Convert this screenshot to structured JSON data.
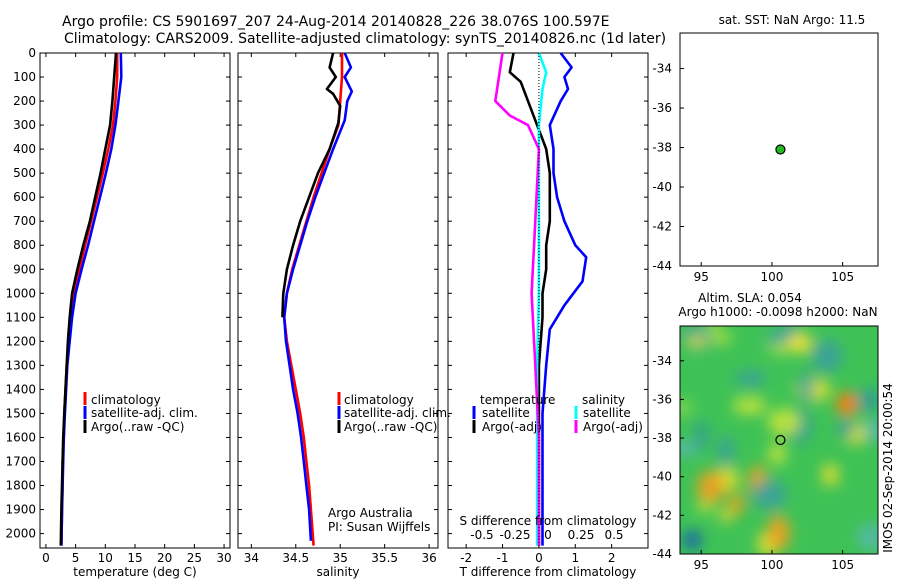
{
  "title_line1": "Argo profile: CS 5901697_207 24-Aug-2014 20140828_226 38.076S 100.597E",
  "title_line2": "Climatology: CARS2009. Satellite-adjusted climatology: synTS_20140826.nc (1d later)",
  "side_label": "IMOS 02-Sep-2014 20:00:54",
  "credit_line1": "Argo Australia",
  "credit_line2": "PI: Susan Wijffels",
  "colors": {
    "red": "#ff0000",
    "blue": "#0000ff",
    "black": "#000000",
    "cyan": "#00ffff",
    "magenta": "#ff00ff",
    "dot": "#22bb22"
  },
  "chart_data": [
    {
      "type": "line",
      "id": "temperature",
      "xlabel": "temperature (deg C)",
      "xlim": [
        -1,
        31
      ],
      "ylim": [
        2060,
        0
      ],
      "xticks": [
        0,
        5,
        10,
        15,
        20,
        25,
        30
      ],
      "yticks": [
        0,
        100,
        200,
        300,
        400,
        500,
        600,
        700,
        800,
        900,
        1000,
        1100,
        1200,
        1300,
        1400,
        1500,
        1600,
        1700,
        1800,
        1900,
        2000
      ],
      "legend": [
        "climatology",
        "satellite-adj. clim.",
        "Argo(..raw -QC)"
      ],
      "series": [
        {
          "name": "climatology",
          "color": "red",
          "points": [
            [
              12,
              0
            ],
            [
              12,
              100
            ],
            [
              11.7,
              200
            ],
            [
              11.3,
              300
            ],
            [
              10.5,
              400
            ],
            [
              9.6,
              500
            ],
            [
              8.6,
              600
            ],
            [
              7.6,
              700
            ],
            [
              6.6,
              800
            ],
            [
              5.6,
              900
            ],
            [
              4.7,
              1000
            ],
            [
              4.2,
              1100
            ],
            [
              3.8,
              1200
            ],
            [
              3.5,
              1300
            ],
            [
              3.3,
              1400
            ],
            [
              3.1,
              1500
            ],
            [
              3.0,
              1600
            ],
            [
              2.8,
              1700
            ],
            [
              2.8,
              1800
            ],
            [
              2.7,
              1900
            ],
            [
              2.6,
              2050
            ]
          ]
        },
        {
          "name": "satellite-adj. clim.",
          "color": "blue",
          "points": [
            [
              12.6,
              0
            ],
            [
              12.7,
              100
            ],
            [
              12.2,
              200
            ],
            [
              11.7,
              300
            ],
            [
              11.0,
              400
            ],
            [
              10.1,
              500
            ],
            [
              9.1,
              600
            ],
            [
              8.1,
              700
            ],
            [
              7.1,
              800
            ],
            [
              6.0,
              900
            ],
            [
              5.0,
              1000
            ],
            [
              4.4,
              1100
            ],
            [
              4.0,
              1200
            ],
            [
              3.6,
              1300
            ],
            [
              3.4,
              1400
            ],
            [
              3.2,
              1500
            ],
            [
              3.0,
              1600
            ],
            [
              2.9,
              1700
            ],
            [
              2.8,
              1800
            ],
            [
              2.7,
              1900
            ],
            [
              2.6,
              2050
            ]
          ]
        },
        {
          "name": "Argo(..raw -QC)",
          "color": "black",
          "points": [
            [
              11.8,
              0
            ],
            [
              11.5,
              100
            ],
            [
              11.2,
              200
            ],
            [
              10.8,
              300
            ],
            [
              10.0,
              400
            ],
            [
              9.2,
              500
            ],
            [
              8.3,
              600
            ],
            [
              7.4,
              700
            ],
            [
              6.3,
              800
            ],
            [
              5.3,
              900
            ],
            [
              4.4,
              1000
            ],
            [
              4.0,
              1100
            ],
            [
              3.7,
              1200
            ],
            [
              3.5,
              1300
            ],
            [
              3.3,
              1400
            ],
            [
              3.1,
              1500
            ],
            [
              2.9,
              1600
            ],
            [
              2.8,
              1700
            ],
            [
              2.7,
              1800
            ],
            [
              2.6,
              1900
            ],
            [
              2.5,
              2050
            ]
          ]
        }
      ]
    },
    {
      "type": "line",
      "id": "salinity",
      "xlabel": "salinity",
      "xlim": [
        33.85,
        36.1
      ],
      "ylim": [
        2060,
        0
      ],
      "xticks": [
        34,
        34.5,
        35,
        35.5,
        36
      ],
      "legend": [
        "climatology",
        "satellite-adj. clim.",
        "Argo(..raw -QC)"
      ],
      "series": [
        {
          "name": "climatology",
          "color": "red",
          "points": [
            [
              35.02,
              0
            ],
            [
              35.02,
              100
            ],
            [
              35.0,
              200
            ],
            [
              34.98,
              300
            ],
            [
              34.88,
              400
            ],
            [
              34.79,
              500
            ],
            [
              34.7,
              600
            ],
            [
              34.62,
              700
            ],
            [
              34.54,
              800
            ],
            [
              34.46,
              900
            ],
            [
              34.4,
              1000
            ],
            [
              34.37,
              1100
            ],
            [
              34.4,
              1200
            ],
            [
              34.45,
              1300
            ],
            [
              34.5,
              1400
            ],
            [
              34.55,
              1500
            ],
            [
              34.59,
              1600
            ],
            [
              34.62,
              1700
            ],
            [
              34.65,
              1800
            ],
            [
              34.67,
              1900
            ],
            [
              34.7,
              2050
            ]
          ]
        },
        {
          "name": "satellite-adj. clim.",
          "color": "blue",
          "points": [
            [
              35.05,
              0
            ],
            [
              35.12,
              60
            ],
            [
              35.05,
              100
            ],
            [
              35.13,
              160
            ],
            [
              35.08,
              200
            ],
            [
              35.05,
              280
            ],
            [
              34.92,
              400
            ],
            [
              34.82,
              500
            ],
            [
              34.72,
              600
            ],
            [
              34.63,
              700
            ],
            [
              34.55,
              800
            ],
            [
              34.47,
              900
            ],
            [
              34.4,
              1000
            ],
            [
              34.37,
              1100
            ],
            [
              34.39,
              1200
            ],
            [
              34.43,
              1300
            ],
            [
              34.47,
              1400
            ],
            [
              34.52,
              1500
            ],
            [
              34.56,
              1600
            ],
            [
              34.59,
              1700
            ],
            [
              34.62,
              1800
            ],
            [
              34.65,
              1900
            ],
            [
              34.67,
              2030
            ]
          ]
        },
        {
          "name": "Argo(..raw -QC)",
          "color": "black",
          "points": [
            [
              34.92,
              0
            ],
            [
              34.88,
              60
            ],
            [
              34.95,
              100
            ],
            [
              34.85,
              150
            ],
            [
              34.92,
              170
            ],
            [
              35.0,
              220
            ],
            [
              34.98,
              290
            ],
            [
              34.88,
              400
            ],
            [
              34.75,
              500
            ],
            [
              34.65,
              600
            ],
            [
              34.55,
              700
            ],
            [
              34.47,
              800
            ],
            [
              34.4,
              900
            ],
            [
              34.36,
              1000
            ],
            [
              34.35,
              1100
            ]
          ]
        }
      ]
    },
    {
      "type": "line",
      "id": "difference",
      "xlabel": "T difference from climatology",
      "inner_label": "S difference from climatology",
      "xlim": [
        -2.5,
        3
      ],
      "ylim": [
        2060,
        0
      ],
      "xticks": [
        -2,
        -1,
        0,
        1,
        2
      ],
      "top_ticks_label": [
        "-0.5",
        "-0.25",
        "0",
        "0.25",
        "0.5"
      ],
      "legend_headers": [
        "temperature",
        "salinity"
      ],
      "legend": [
        "satellite",
        "Argo(-adj)",
        "satellite",
        "Argo(-adj)"
      ],
      "series": [
        {
          "name": "satellite",
          "color": "blue",
          "points": [
            [
              0.6,
              0
            ],
            [
              0.9,
              60
            ],
            [
              0.7,
              100
            ],
            [
              0.8,
              150
            ],
            [
              0.6,
              200
            ],
            [
              0.3,
              300
            ],
            [
              0.4,
              400
            ],
            [
              0.4,
              500
            ],
            [
              0.5,
              600
            ],
            [
              0.7,
              700
            ],
            [
              1.0,
              800
            ],
            [
              1.3,
              850
            ],
            [
              1.2,
              950
            ],
            [
              0.7,
              1050
            ],
            [
              0.3,
              1150
            ],
            [
              0.2,
              1300
            ],
            [
              0.1,
              1500
            ],
            [
              0.1,
              1800
            ],
            [
              0.1,
              2050
            ]
          ]
        },
        {
          "name": "Argo(-adj)",
          "color": "black",
          "points": [
            [
              -0.7,
              0
            ],
            [
              -0.8,
              80
            ],
            [
              -0.5,
              120
            ],
            [
              -0.3,
              200
            ],
            [
              -0.1,
              280
            ],
            [
              0.2,
              400
            ],
            [
              0.3,
              500
            ],
            [
              0.3,
              600
            ],
            [
              0.3,
              700
            ],
            [
              0.2,
              800
            ],
            [
              0.2,
              900
            ],
            [
              0.1,
              1000
            ],
            [
              0.1,
              1100
            ],
            [
              0.0,
              1300
            ],
            [
              0.0,
              1600
            ],
            [
              0.0,
              2050
            ]
          ]
        },
        {
          "name": "satellite",
          "color": "cyan",
          "points": [
            [
              0.0,
              0
            ],
            [
              0.2,
              80
            ],
            [
              0.1,
              150
            ],
            [
              0.0,
              300
            ],
            [
              0.0,
              600
            ],
            [
              0.0,
              1000
            ],
            [
              -0.05,
              1300
            ],
            [
              -0.05,
              1700
            ],
            [
              -0.05,
              2050
            ]
          ]
        },
        {
          "name": "Argo(-adj)",
          "color": "magenta",
          "points": [
            [
              -1.0,
              0
            ],
            [
              -1.1,
              100
            ],
            [
              -1.2,
              200
            ],
            [
              -0.8,
              260
            ],
            [
              -0.3,
              300
            ],
            [
              0.0,
              400
            ],
            [
              -0.1,
              700
            ],
            [
              -0.2,
              1000
            ],
            [
              -0.1,
              1300
            ],
            [
              0.0,
              1600
            ],
            [
              0.0,
              2050
            ]
          ]
        }
      ]
    },
    {
      "type": "scatter",
      "id": "sst_map",
      "title": "sat. SST: NaN Argo: 11.5",
      "xlim": [
        93.5,
        107.5
      ],
      "ylim": [
        -44,
        -32.2
      ],
      "xticks": [
        95,
        100,
        105
      ],
      "yticks": [
        -34,
        -36,
        -38,
        -40,
        -42,
        -44
      ],
      "points": [
        [
          100.6,
          -38.1
        ]
      ]
    },
    {
      "type": "heatmap",
      "id": "sla_map",
      "title_line1": "Altim. SLA: 0.054",
      "title_line2": "Argo h1000: -0.0098 h2000: NaN",
      "xlim": [
        93.5,
        107.5
      ],
      "ylim": [
        -44,
        -32.2
      ],
      "xticks": [
        95,
        100,
        105
      ],
      "yticks": [
        -34,
        -36,
        -38,
        -40,
        -42,
        -44
      ],
      "points": [
        [
          100.6,
          -38.1
        ]
      ]
    }
  ]
}
